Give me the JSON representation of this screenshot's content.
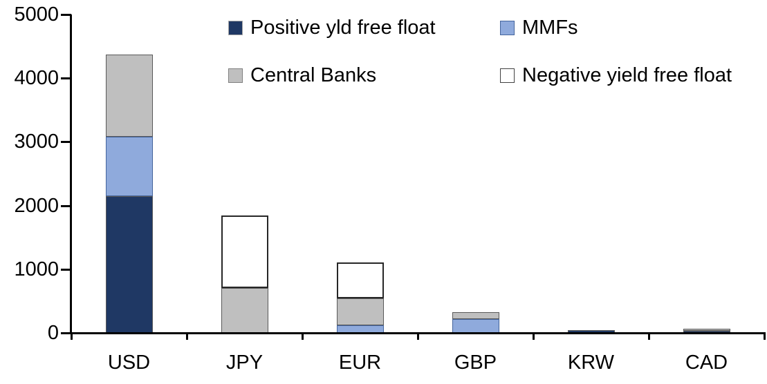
{
  "chart_data": {
    "type": "bar",
    "stacked": true,
    "title": "",
    "xlabel": "",
    "ylabel": "",
    "categories": [
      "USD",
      "JPY",
      "EUR",
      "GBP",
      "KRW",
      "CAD"
    ],
    "series": [
      {
        "name": "Positive yld free float",
        "color": "#1F3864",
        "border": "#595959",
        "legend_border": "#A6A6A6",
        "values": [
          2150,
          0,
          0,
          0,
          40,
          30
        ]
      },
      {
        "name": "MMFs",
        "color": "#8FAADC",
        "border": "#44649C",
        "legend_border": "#44649C",
        "values": [
          930,
          0,
          120,
          220,
          0,
          0
        ]
      },
      {
        "name": "Central Banks",
        "color": "#BFBFBF",
        "border": "#595959",
        "legend_border": "#808080",
        "values": [
          1290,
          700,
          420,
          110,
          0,
          30
        ]
      },
      {
        "name": "Negative yield free float",
        "color": "#FFFFFF",
        "border": "#262626",
        "legend_border": "#404040",
        "values": [
          0,
          1140,
          570,
          0,
          0,
          0
        ]
      }
    ],
    "totals": {
      "USD": 4370,
      "JPY": 1840,
      "EUR": 1110,
      "GBP": 330,
      "KRW": 40,
      "CAD": 60
    },
    "ylim": [
      0,
      5000
    ],
    "yticks": [
      0,
      1000,
      2000,
      3000,
      4000,
      5000
    ],
    "grid": false,
    "legend_position": "top",
    "legend_layout": "2x2"
  },
  "colors": {
    "background": "#FFFFFF",
    "axis": "#000000",
    "text": "#000000"
  }
}
